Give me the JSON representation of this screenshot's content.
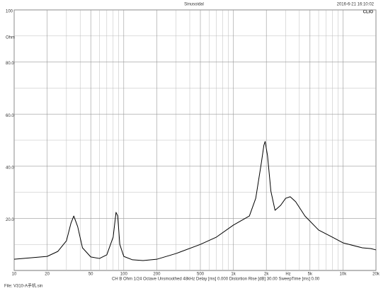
{
  "chart_data": {
    "type": "line",
    "title": "Sinusoidal",
    "timestamp": "2016-6-21 16:10:02",
    "brand": "CLIO",
    "ylabel": "Ohm",
    "xlabel": "Hz",
    "info": "CH B  Ohm  1/24 Octave  Unsmoothed  48kHz  Delay [ms] 0.000  Distortion Rise [dB] 30.00  SweepTime [ms] 0.00",
    "file": "File: V310-A手机.sin",
    "log_x": true,
    "xlim": [
      10,
      20000
    ],
    "ylim": [
      0,
      100
    ],
    "xticks": [
      10,
      20,
      50,
      100,
      200,
      500,
      {
        "value": 1000,
        "label": "1k"
      },
      {
        "value": 2000,
        "label": "2k"
      },
      {
        "value": 5000,
        "label": "5k"
      },
      {
        "value": 10000,
        "label": "10k"
      },
      {
        "value": 20000,
        "label": "20k"
      }
    ],
    "xminor": [
      30,
      40,
      60,
      70,
      80,
      90,
      300,
      400,
      600,
      700,
      800,
      900,
      3000,
      4000,
      6000,
      7000,
      8000,
      9000
    ],
    "yticks": [
      {
        "value": 20,
        "label": "20.0"
      },
      {
        "value": 40,
        "label": "40.0"
      },
      {
        "value": 60,
        "label": "60.0"
      },
      {
        "value": 80,
        "label": "80.0"
      },
      100
    ],
    "yminor": [
      10,
      30,
      50,
      70,
      90
    ],
    "x": [
      10,
      20,
      25,
      30,
      33,
      35,
      38,
      42,
      50,
      60,
      70,
      80,
      85,
      88,
      92,
      100,
      120,
      150,
      200,
      300,
      500,
      700,
      1000,
      1200,
      1400,
      1600,
      1800,
      1900,
      1950,
      2050,
      2200,
      2400,
      2700,
      3000,
      3300,
      3700,
      4500,
      6000,
      8000,
      10000,
      15000,
      18000,
      20000
    ],
    "series": [
      {
        "name": "Impedance",
        "color": "#000000",
        "values": [
          4.3,
          5.4,
          7.3,
          11.4,
          18.2,
          20.9,
          16.8,
          8.7,
          5.2,
          4.6,
          6,
          12.8,
          22.3,
          21,
          10,
          5.4,
          4.1,
          3.8,
          4.3,
          6.5,
          10,
          12.8,
          17.4,
          19.3,
          20.9,
          27.7,
          41.3,
          48.1,
          49.5,
          44,
          30.4,
          23.1,
          25,
          27.7,
          28.3,
          26.4,
          20.9,
          15.5,
          12.8,
          10.6,
          8.7,
          8.4,
          7.9
        ]
      }
    ]
  }
}
